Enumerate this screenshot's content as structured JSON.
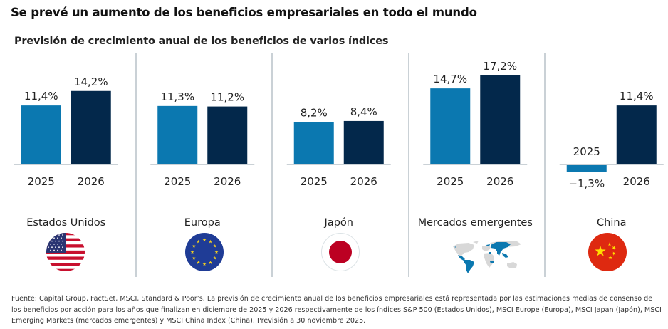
{
  "header": {
    "title": "Se prevé un aumento de los beneficios empresariales en todo el mundo",
    "subtitle": "Previsión de crecimiento anual de los beneficios de varios índices"
  },
  "colors": {
    "bar_2025": "#0b78b0",
    "bar_2026": "#03284b",
    "axis": "#b9c2c8",
    "divider": "#b9c2c8"
  },
  "chart_data": {
    "type": "bar",
    "title": "Previsión de crecimiento anual de los beneficios de varios índices",
    "xlabel": "",
    "ylabel": "",
    "unit": "%",
    "grid": false,
    "layout": "small-multiples",
    "categories": [
      "2025",
      "2026"
    ],
    "panels": [
      {
        "region": "Estados Unidos",
        "icon": "usa-flag-icon",
        "values": [
          11.4,
          14.2
        ],
        "labels": [
          "11,4%",
          "14,2%"
        ]
      },
      {
        "region": "Europa",
        "icon": "eu-flag-icon",
        "values": [
          11.3,
          11.2
        ],
        "labels": [
          "11,3%",
          "11,2%"
        ]
      },
      {
        "region": "Japón",
        "icon": "japan-flag-icon",
        "values": [
          8.2,
          8.4
        ],
        "labels": [
          "8,2%",
          "8,4%"
        ]
      },
      {
        "region": "Mercados emergentes",
        "icon": "world-map-icon",
        "values": [
          14.7,
          17.2
        ],
        "labels": [
          "14,7%",
          "17,2%"
        ]
      },
      {
        "region": "China",
        "icon": "china-flag-icon",
        "values": [
          -1.3,
          11.4
        ],
        "labels": [
          "−1,3%",
          "11,4%"
        ]
      }
    ]
  },
  "footnote": "Fuente: Capital Group, FactSet, MSCI, Standard & Poor’s. La previsión de crecimiento anual de los beneficios empresariales está representada por las estimaciones medias de consenso de los beneficios por acción para los años que finalizan en diciembre de 2025 y 2026 respectivamente de los índices S&P 500 (Estados Unidos), MSCI Europe (Europa), MSCI Japan (Japón), MSCI Emerging Markets (mercados emergentes) y MSCI China Index (China). Previsión a 30 noviembre 2025."
}
